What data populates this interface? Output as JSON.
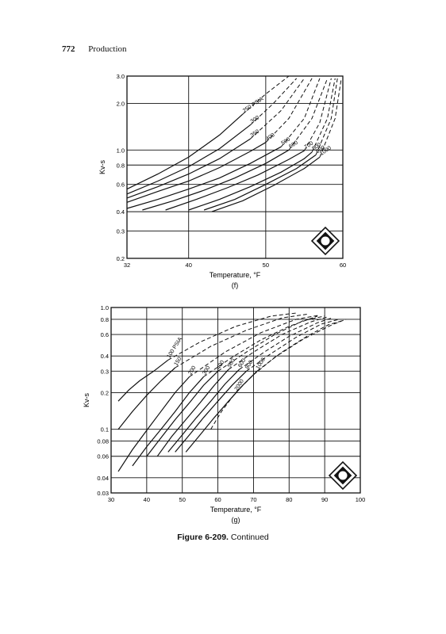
{
  "page": {
    "number": "772",
    "section": "Production"
  },
  "caption": {
    "figure": "Figure 6-209.",
    "text": "Continued"
  },
  "chart_data": [
    {
      "id": "f",
      "type": "line",
      "panel_label": "(f)",
      "xlabel": "Temperature, °F",
      "ylabel": "Kv-s",
      "xlim": [
        32,
        60
      ],
      "ylim": [
        0.2,
        3.0
      ],
      "yscale": "log",
      "grid": true,
      "xticks": [
        32,
        40,
        50,
        60
      ],
      "yticks": [
        0.2,
        0.3,
        0.4,
        0.6,
        0.8,
        1.0,
        2.0,
        3.0
      ],
      "ytick_labels": [
        "0.2",
        "0.3",
        "0.4",
        "0.6",
        "0.8",
        "1.0",
        "2.0",
        "3.0"
      ],
      "series": [
        {
          "name": "250 PSIA",
          "x": [
            32,
            36,
            40,
            44,
            47
          ],
          "y": [
            0.56,
            0.7,
            0.9,
            1.25,
            1.7
          ],
          "dashed_x": [
            47,
            50,
            53
          ],
          "dashed_y": [
            1.7,
            2.3,
            3.0
          ]
        },
        {
          "name": "300",
          "x": [
            32,
            36,
            40,
            44,
            48
          ],
          "y": [
            0.52,
            0.63,
            0.78,
            1.02,
            1.45
          ],
          "dashed_x": [
            48,
            51,
            54
          ],
          "dashed_y": [
            1.45,
            2.0,
            2.9
          ]
        },
        {
          "name": "350",
          "x": [
            32,
            36,
            40,
            44,
            48
          ],
          "y": [
            0.49,
            0.58,
            0.7,
            0.88,
            1.18
          ],
          "dashed_x": [
            48,
            52,
            55
          ],
          "dashed_y": [
            1.18,
            1.8,
            2.9
          ]
        },
        {
          "name": "400",
          "x": [
            32,
            36,
            40,
            44,
            48,
            50
          ],
          "y": [
            0.46,
            0.54,
            0.63,
            0.77,
            0.98,
            1.12
          ],
          "dashed_x": [
            50,
            53,
            56
          ],
          "dashed_y": [
            1.12,
            1.6,
            2.9
          ]
        },
        {
          "name": "500",
          "x": [
            32,
            36,
            40,
            44,
            48,
            52
          ],
          "y": [
            0.42,
            0.48,
            0.56,
            0.66,
            0.82,
            1.05
          ],
          "dashed_x": [
            52,
            55,
            57
          ],
          "dashed_y": [
            1.05,
            1.6,
            2.9
          ]
        },
        {
          "name": "600",
          "x": [
            34,
            38,
            42,
            46,
            50,
            53
          ],
          "y": [
            0.41,
            0.47,
            0.55,
            0.66,
            0.82,
            1.0
          ],
          "dashed_x": [
            53,
            56,
            58
          ],
          "dashed_y": [
            1.0,
            1.6,
            2.9
          ]
        },
        {
          "name": "700",
          "x": [
            37,
            41,
            45,
            49,
            53,
            55
          ],
          "y": [
            0.41,
            0.48,
            0.57,
            0.69,
            0.87,
            0.99
          ],
          "dashed_x": [
            55,
            57,
            58.5
          ],
          "dashed_y": [
            0.99,
            1.5,
            2.9
          ]
        },
        {
          "name": "800",
          "x": [
            40,
            44,
            48,
            52,
            55,
            56
          ],
          "y": [
            0.41,
            0.48,
            0.58,
            0.72,
            0.88,
            0.97
          ],
          "dashed_x": [
            56,
            58,
            59
          ],
          "dashed_y": [
            0.97,
            1.6,
            2.9
          ]
        },
        {
          "name": "900",
          "x": [
            42,
            46,
            50,
            54,
            56.5
          ],
          "y": [
            0.41,
            0.48,
            0.6,
            0.76,
            0.93
          ],
          "dashed_x": [
            56.5,
            58.5,
            59.3
          ],
          "dashed_y": [
            0.93,
            1.6,
            2.9
          ]
        },
        {
          "name": "1000",
          "x": [
            43,
            47,
            51,
            55,
            57
          ],
          "y": [
            0.4,
            0.47,
            0.59,
            0.76,
            0.9
          ],
          "dashed_x": [
            57,
            59,
            59.8
          ],
          "dashed_y": [
            0.9,
            1.6,
            2.9
          ]
        }
      ]
    },
    {
      "id": "g",
      "type": "line",
      "panel_label": "(g)",
      "xlabel": "Temperature, °F",
      "ylabel": "Kv-s",
      "xlim": [
        30,
        100
      ],
      "ylim": [
        0.03,
        1.0
      ],
      "yscale": "log",
      "grid": true,
      "xticks": [
        30,
        40,
        50,
        60,
        70,
        80,
        90,
        100
      ],
      "yticks": [
        0.03,
        0.04,
        0.06,
        0.08,
        0.1,
        0.2,
        0.3,
        0.4,
        0.6,
        0.8,
        1.0
      ],
      "ytick_labels": [
        "0.03",
        "0.04",
        "0.06",
        "0.08",
        "0.1",
        "0.2",
        "0.3",
        "0.4",
        "0.6",
        "0.8",
        "1.0"
      ],
      "series": [
        {
          "name": "100 PSIA",
          "x": [
            32,
            35,
            38,
            42,
            46
          ],
          "y": [
            0.17,
            0.21,
            0.25,
            0.3,
            0.37
          ],
          "dashed_x": [
            46,
            55,
            65,
            75,
            82
          ],
          "dashed_y": [
            0.37,
            0.52,
            0.7,
            0.85,
            0.9
          ]
        },
        {
          "name": "150",
          "x": [
            32,
            36,
            40,
            44,
            48
          ],
          "y": [
            0.1,
            0.14,
            0.19,
            0.25,
            0.32
          ],
          "dashed_x": [
            48,
            58,
            68,
            78,
            85
          ],
          "dashed_y": [
            0.32,
            0.48,
            0.65,
            0.82,
            0.88
          ]
        },
        {
          "name": "200",
          "x": [
            32,
            36,
            40,
            44,
            48,
            52
          ],
          "y": [
            0.045,
            0.068,
            0.098,
            0.14,
            0.2,
            0.27
          ],
          "dashed_x": [
            52,
            62,
            72,
            82,
            88
          ],
          "dashed_y": [
            0.27,
            0.43,
            0.62,
            0.8,
            0.86
          ]
        },
        {
          "name": "300",
          "x": [
            36,
            40,
            44,
            48,
            52,
            56
          ],
          "y": [
            0.05,
            0.072,
            0.1,
            0.14,
            0.2,
            0.27
          ],
          "dashed_x": [
            56,
            64,
            72,
            80,
            88
          ],
          "dashed_y": [
            0.27,
            0.39,
            0.54,
            0.7,
            0.85
          ]
        },
        {
          "name": "400",
          "x": [
            40,
            44,
            48,
            52,
            56,
            60
          ],
          "y": [
            0.06,
            0.085,
            0.12,
            0.165,
            0.23,
            0.3
          ],
          "dashed_x": [
            60,
            68,
            76,
            84,
            90
          ],
          "dashed_y": [
            0.3,
            0.43,
            0.6,
            0.78,
            0.85
          ]
        },
        {
          "name": "500",
          "x": [
            43,
            47,
            51,
            55,
            59,
            63
          ],
          "y": [
            0.06,
            0.087,
            0.12,
            0.165,
            0.23,
            0.31
          ],
          "dashed_x": [
            63,
            70,
            78,
            86,
            91
          ],
          "dashed_y": [
            0.31,
            0.43,
            0.6,
            0.76,
            0.84
          ]
        },
        {
          "name": "600",
          "x": [
            46,
            50,
            54,
            58,
            62,
            66
          ],
          "y": [
            0.065,
            0.09,
            0.125,
            0.17,
            0.235,
            0.31
          ],
          "dashed_x": [
            66,
            73,
            80,
            88,
            92
          ],
          "dashed_y": [
            0.31,
            0.43,
            0.58,
            0.75,
            0.82
          ]
        },
        {
          "name": "800",
          "x": [
            48,
            52,
            56,
            60,
            64,
            68
          ],
          "y": [
            0.065,
            0.09,
            0.125,
            0.17,
            0.23,
            0.3
          ],
          "dashed_x": [
            68,
            75,
            82,
            89,
            94
          ],
          "dashed_y": [
            0.3,
            0.42,
            0.57,
            0.73,
            0.8
          ]
        },
        {
          "name": "1000",
          "x": [
            51,
            55,
            59,
            63,
            67,
            71
          ],
          "y": [
            0.065,
            0.09,
            0.125,
            0.17,
            0.23,
            0.3
          ],
          "dashed_x": [
            71,
            78,
            85,
            91,
            95
          ],
          "dashed_y": [
            0.3,
            0.43,
            0.58,
            0.72,
            0.78
          ]
        },
        {
          "name": "2000",
          "x": [],
          "y": [],
          "dashed_x": [
            58,
            61,
            65,
            70,
            76,
            84,
            92,
            96
          ],
          "dashed_y": [
            0.1,
            0.14,
            0.2,
            0.28,
            0.39,
            0.55,
            0.72,
            0.8
          ]
        }
      ]
    }
  ]
}
